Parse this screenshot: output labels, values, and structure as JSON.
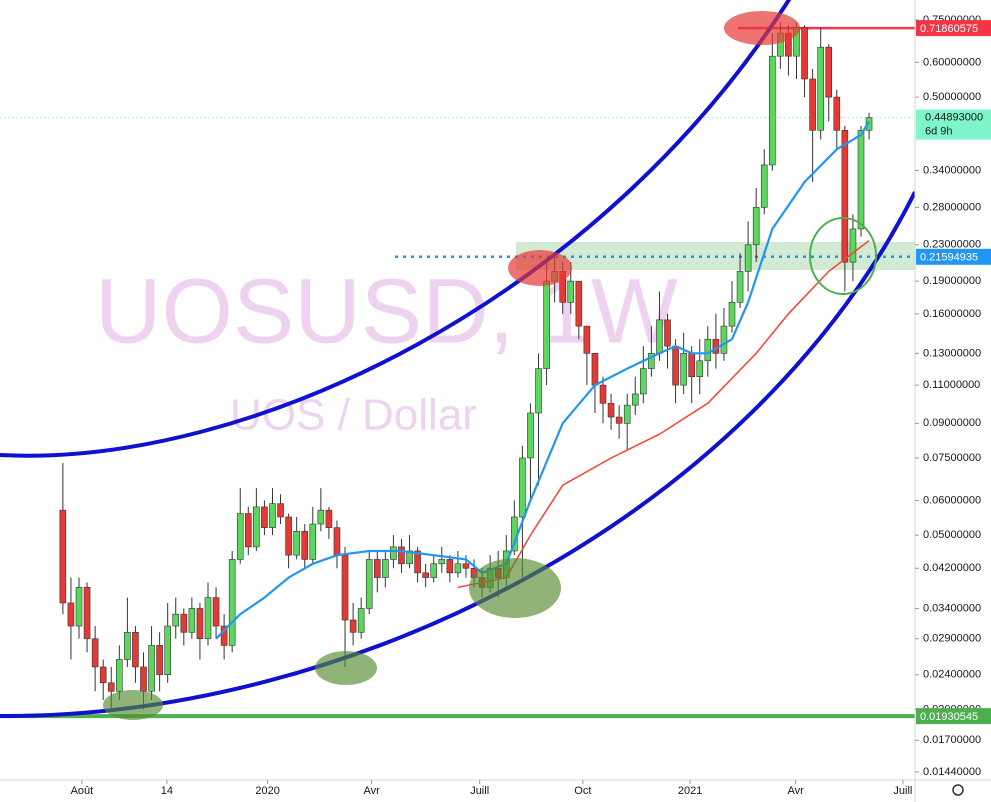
{
  "chart_data": {
    "type": "candlestick",
    "watermark": "UOSUSD, 1W",
    "subtitle": "UOS / Dollar",
    "log_scale": true,
    "grid": false,
    "ylim": [
      0.0138,
      0.833
    ],
    "yticks": [
      {
        "value": 0.75,
        "label": "0.75000000"
      },
      {
        "value": 0.6,
        "label": "0.60000000"
      },
      {
        "value": 0.5,
        "label": "0.50000000"
      },
      {
        "value": 0.34,
        "label": "0.34000000"
      },
      {
        "value": 0.28,
        "label": "0.28000000"
      },
      {
        "value": 0.23,
        "label": "0.23000000"
      },
      {
        "value": 0.19,
        "label": "0.19000000"
      },
      {
        "value": 0.16,
        "label": "0.16000000"
      },
      {
        "value": 0.13,
        "label": "0.13000000"
      },
      {
        "value": 0.11,
        "label": "0.11000000"
      },
      {
        "value": 0.09,
        "label": "0.09000000"
      },
      {
        "value": 0.075,
        "label": "0.07500000"
      },
      {
        "value": 0.06,
        "label": "0.06000000"
      },
      {
        "value": 0.05,
        "label": "0.05000000"
      },
      {
        "value": 0.042,
        "label": "0.04200000"
      },
      {
        "value": 0.034,
        "label": "0.03400000"
      },
      {
        "value": 0.029,
        "label": "0.02900000"
      },
      {
        "value": 0.024,
        "label": "0.02400000"
      },
      {
        "value": 0.02,
        "label": "0.02000000"
      },
      {
        "value": 0.017,
        "label": "0.01700000"
      },
      {
        "value": 0.0144,
        "label": "0.01440000"
      }
    ],
    "xlim": [
      -7.8,
      105.7
    ],
    "xticks": [
      {
        "value": 2.36,
        "label": "Août"
      },
      {
        "value": 12.9,
        "label": "14"
      },
      {
        "value": 25.4,
        "label": "2020"
      },
      {
        "value": 38.3,
        "label": "Avr"
      },
      {
        "value": 51.7,
        "label": "Juill"
      },
      {
        "value": 64.5,
        "label": "Oct"
      },
      {
        "value": 77.8,
        "label": "2021"
      },
      {
        "value": 90.9,
        "label": "Avr"
      },
      {
        "value": 104.2,
        "label": "Juill"
      }
    ],
    "up_color": "#5cd65c",
    "down_color": "#e53935",
    "open": [
      0.057,
      0.035,
      0.031,
      0.038,
      0.029,
      0.025,
      0.023,
      0.022,
      0.026,
      0.03,
      0.025,
      0.022,
      0.028,
      0.024,
      0.031,
      0.033,
      0.03,
      0.034,
      0.029,
      0.036,
      0.031,
      0.028,
      0.044,
      0.056,
      0.047,
      0.058,
      0.052,
      0.059,
      0.055,
      0.045,
      0.051,
      0.044,
      0.053,
      0.057,
      0.052,
      0.045,
      0.032,
      0.03,
      0.034,
      0.044,
      0.04,
      0.044,
      0.047,
      0.043,
      0.046,
      0.041,
      0.04,
      0.043,
      0.044,
      0.041,
      0.043,
      0.042,
      0.04,
      0.038,
      0.042,
      0.04,
      0.046,
      0.055,
      0.075,
      0.095,
      0.12,
      0.19,
      0.2,
      0.17,
      0.19,
      0.15,
      0.13,
      0.11,
      0.1,
      0.093,
      0.09,
      0.099,
      0.105,
      0.12,
      0.13,
      0.155,
      0.135,
      0.11,
      0.13,
      0.115,
      0.125,
      0.14,
      0.13,
      0.15,
      0.17,
      0.2,
      0.23,
      0.28,
      0.35,
      0.62,
      0.7,
      0.62,
      0.72,
      0.55,
      0.42,
      0.65,
      0.5,
      0.42,
      0.21,
      0.25,
      0.42
    ],
    "high": [
      0.073,
      0.04,
      0.04,
      0.039,
      0.031,
      0.026,
      0.025,
      0.028,
      0.036,
      0.031,
      0.027,
      0.031,
      0.03,
      0.035,
      0.036,
      0.034,
      0.036,
      0.035,
      0.039,
      0.038,
      0.033,
      0.046,
      0.064,
      0.058,
      0.064,
      0.06,
      0.064,
      0.062,
      0.056,
      0.055,
      0.053,
      0.058,
      0.064,
      0.058,
      0.054,
      0.047,
      0.035,
      0.036,
      0.046,
      0.046,
      0.046,
      0.05,
      0.049,
      0.05,
      0.047,
      0.043,
      0.045,
      0.047,
      0.045,
      0.046,
      0.045,
      0.044,
      0.042,
      0.045,
      0.046,
      0.05,
      0.06,
      0.08,
      0.1,
      0.13,
      0.21,
      0.22,
      0.21,
      0.21,
      0.19,
      0.15,
      0.13,
      0.115,
      0.105,
      0.099,
      0.105,
      0.115,
      0.135,
      0.15,
      0.18,
      0.16,
      0.14,
      0.145,
      0.135,
      0.14,
      0.15,
      0.16,
      0.165,
      0.19,
      0.22,
      0.26,
      0.31,
      0.38,
      0.7,
      0.74,
      0.73,
      0.74,
      0.73,
      0.58,
      0.72,
      0.66,
      0.52,
      0.43,
      0.27,
      0.43,
      0.46
    ],
    "low": [
      0.033,
      0.026,
      0.029,
      0.027,
      0.022,
      0.021,
      0.02,
      0.021,
      0.025,
      0.023,
      0.02,
      0.021,
      0.022,
      0.023,
      0.029,
      0.028,
      0.029,
      0.026,
      0.028,
      0.029,
      0.026,
      0.027,
      0.043,
      0.045,
      0.046,
      0.05,
      0.05,
      0.053,
      0.042,
      0.044,
      0.042,
      0.043,
      0.051,
      0.049,
      0.042,
      0.025,
      0.028,
      0.029,
      0.033,
      0.037,
      0.038,
      0.042,
      0.041,
      0.042,
      0.039,
      0.038,
      0.039,
      0.041,
      0.039,
      0.04,
      0.04,
      0.038,
      0.036,
      0.037,
      0.036,
      0.038,
      0.045,
      0.04,
      0.06,
      0.065,
      0.11,
      0.17,
      0.16,
      0.16,
      0.14,
      0.11,
      0.095,
      0.09,
      0.087,
      0.083,
      0.078,
      0.094,
      0.1,
      0.115,
      0.125,
      0.12,
      0.1,
      0.105,
      0.1,
      0.105,
      0.115,
      0.12,
      0.125,
      0.145,
      0.165,
      0.18,
      0.21,
      0.27,
      0.34,
      0.58,
      0.56,
      0.55,
      0.5,
      0.32,
      0.4,
      0.44,
      0.38,
      0.18,
      0.19,
      0.24,
      0.4
    ],
    "close": [
      0.035,
      0.031,
      0.038,
      0.029,
      0.025,
      0.023,
      0.022,
      0.026,
      0.03,
      0.025,
      0.022,
      0.028,
      0.024,
      0.031,
      0.033,
      0.03,
      0.034,
      0.029,
      0.036,
      0.031,
      0.028,
      0.044,
      0.056,
      0.047,
      0.058,
      0.052,
      0.059,
      0.055,
      0.045,
      0.051,
      0.044,
      0.053,
      0.057,
      0.052,
      0.045,
      0.032,
      0.03,
      0.034,
      0.044,
      0.04,
      0.044,
      0.047,
      0.043,
      0.046,
      0.041,
      0.04,
      0.043,
      0.044,
      0.041,
      0.043,
      0.042,
      0.04,
      0.038,
      0.042,
      0.04,
      0.046,
      0.055,
      0.075,
      0.095,
      0.12,
      0.19,
      0.2,
      0.17,
      0.19,
      0.15,
      0.13,
      0.11,
      0.1,
      0.093,
      0.09,
      0.099,
      0.105,
      0.12,
      0.13,
      0.155,
      0.135,
      0.11,
      0.13,
      0.115,
      0.125,
      0.14,
      0.13,
      0.15,
      0.17,
      0.2,
      0.23,
      0.28,
      0.35,
      0.62,
      0.7,
      0.62,
      0.72,
      0.55,
      0.42,
      0.65,
      0.5,
      0.42,
      0.21,
      0.25,
      0.42,
      0.449
    ],
    "moving_averages": [
      {
        "color": "#2196f3",
        "x": [
          19,
          22,
          25,
          28,
          31,
          34,
          38,
          42,
          46,
          50,
          52,
          55,
          58,
          62,
          66,
          70,
          74,
          76,
          78,
          80,
          83,
          85,
          88,
          92,
          96,
          99,
          100
        ],
        "values": [
          0.029,
          0.033,
          0.036,
          0.04,
          0.043,
          0.045,
          0.046,
          0.046,
          0.045,
          0.044,
          0.041,
          0.043,
          0.06,
          0.09,
          0.11,
          0.12,
          0.13,
          0.135,
          0.13,
          0.13,
          0.14,
          0.17,
          0.25,
          0.32,
          0.38,
          0.41,
          0.44
        ]
      },
      {
        "color": "#f44336",
        "x": [
          49,
          55,
          58,
          62,
          68,
          74,
          80,
          86,
          90,
          95,
          100
        ],
        "values": [
          0.038,
          0.04,
          0.05,
          0.065,
          0.075,
          0.085,
          0.1,
          0.13,
          0.16,
          0.2,
          0.235
        ]
      }
    ],
    "price_lines": [
      {
        "value": 0.71860575,
        "label": "0.71860575",
        "color": "#f23645"
      },
      {
        "value": 0.21594935,
        "label": "0.21594935",
        "color": "#2196f3"
      },
      {
        "value": 0.01930545,
        "label": "0.01930545",
        "color": "#4caf50"
      }
    ],
    "last_price": {
      "value": 0.44893,
      "label": "0.44893000",
      "countdown": "6d 9h",
      "color": "#7ff5c9"
    }
  }
}
